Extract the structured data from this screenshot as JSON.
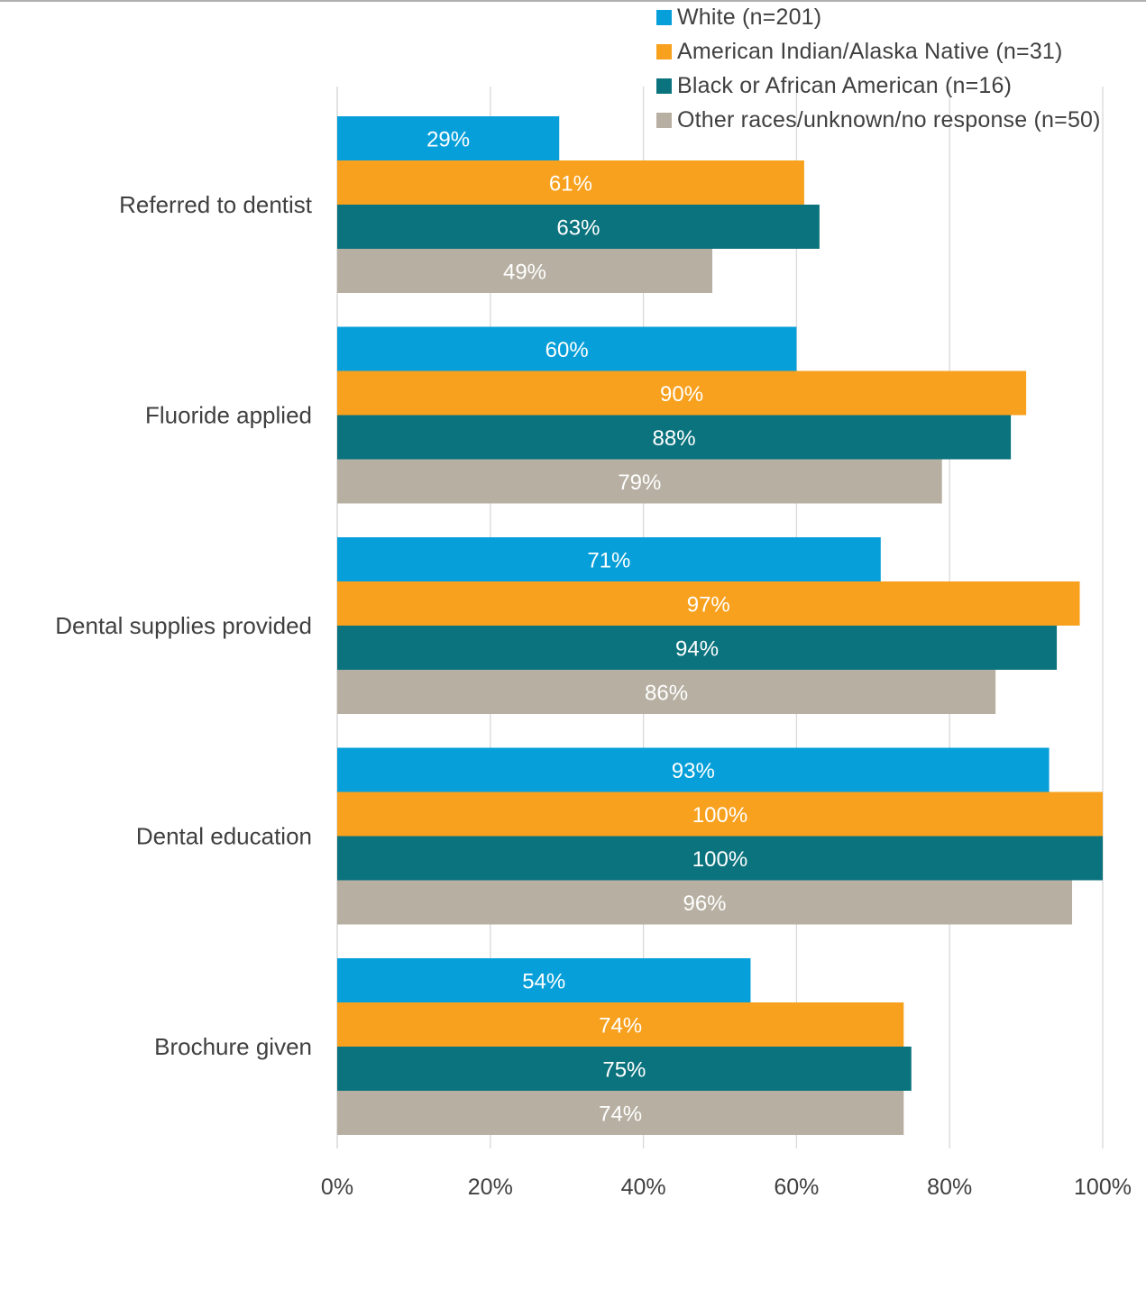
{
  "chart_data": {
    "type": "bar",
    "orientation": "horizontal",
    "categories": [
      "Referred to dentist",
      "Fluoride applied",
      "Dental supplies provided",
      "Dental education",
      "Brochure given"
    ],
    "series": [
      {
        "name": "White (n=201)",
        "color": "#079FD9",
        "values": [
          29,
          60,
          71,
          93,
          54
        ],
        "labels": [
          "29%",
          "60%",
          "71%",
          "93%",
          "54%"
        ]
      },
      {
        "name": "American Indian/Alaska Native (n=31)",
        "color": "#F8A11E",
        "values": [
          61,
          90,
          97,
          100,
          74
        ],
        "labels": [
          "61%",
          "90%",
          "97%",
          "100%",
          "74%"
        ]
      },
      {
        "name": "Black or African American (n=16)",
        "color": "#0B737E",
        "values": [
          63,
          88,
          94,
          100,
          75
        ],
        "labels": [
          "63%",
          "88%",
          "94%",
          "100%",
          "75%"
        ]
      },
      {
        "name": "Other races/unknown/no response (n=50)",
        "color": "#B7B0A2",
        "values": [
          49,
          79,
          86,
          96,
          74
        ],
        "labels": [
          "49%",
          "79%",
          "86%",
          "96%",
          "74%"
        ]
      }
    ],
    "xlim": [
      0,
      100
    ],
    "xticks": [
      "0%",
      "20%",
      "40%",
      "60%",
      "80%",
      "100%"
    ],
    "grid": true,
    "legend_position": "top-right",
    "title": "",
    "xlabel": "",
    "ylabel": ""
  }
}
